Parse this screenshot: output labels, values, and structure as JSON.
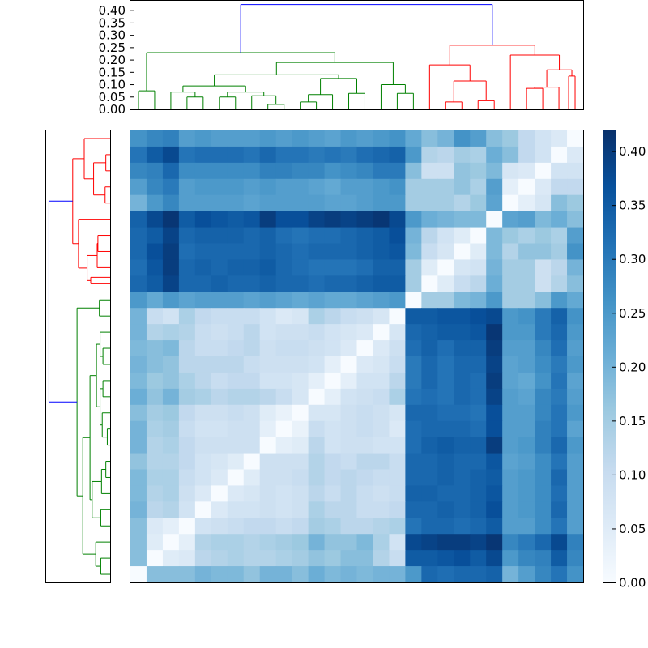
{
  "chart_data": {
    "type": "heatmap",
    "title": "",
    "xlabel": "",
    "ylabel": "",
    "n": 28,
    "colormap": "Blues",
    "colors": {
      "low": "#f7fbff",
      "high": "#08306b",
      "cluster_a": "#ff0000",
      "cluster_b": "#008000",
      "link": "#0000ff"
    },
    "colorbar": {
      "min": 0.0,
      "max": 0.42,
      "ticks": [
        0.0,
        0.05,
        0.1,
        0.15,
        0.2,
        0.25,
        0.3,
        0.35,
        0.4
      ]
    },
    "top_dendrogram": {
      "ylim": [
        0,
        0.44
      ],
      "ticks": [
        0.0,
        0.05,
        0.1,
        0.15,
        0.2,
        0.25,
        0.3,
        0.35,
        0.4
      ],
      "tick_labels": [
        "0.00",
        "0.05",
        "0.10",
        "0.15",
        "0.20",
        "0.25",
        "0.30",
        "0.35",
        "0.40"
      ]
    },
    "clusters": {
      "red_size": 10,
      "green_size": 18,
      "root_height": 0.425,
      "red_root": 0.26,
      "green_root": 0.23
    },
    "matrix": [
      [
        0.26,
        0.28,
        0.29,
        0.24,
        0.25,
        0.24,
        0.24,
        0.24,
        0.25,
        0.24,
        0.25,
        0.24,
        0.23,
        0.25,
        0.24,
        0.25,
        0.26,
        0.22,
        0.18,
        0.2,
        0.26,
        0.24,
        0.18,
        0.16,
        0.11,
        0.08,
        0.06,
        0.0
      ],
      [
        0.31,
        0.35,
        0.38,
        0.31,
        0.32,
        0.32,
        0.32,
        0.31,
        0.33,
        0.31,
        0.31,
        0.3,
        0.31,
        0.3,
        0.32,
        0.33,
        0.34,
        0.25,
        0.13,
        0.12,
        0.15,
        0.14,
        0.21,
        0.18,
        0.11,
        0.08,
        0.0,
        0.06
      ],
      [
        0.28,
        0.29,
        0.33,
        0.27,
        0.27,
        0.27,
        0.27,
        0.27,
        0.29,
        0.29,
        0.28,
        0.28,
        0.26,
        0.27,
        0.28,
        0.3,
        0.3,
        0.18,
        0.09,
        0.09,
        0.17,
        0.16,
        0.19,
        0.07,
        0.06,
        0.0,
        0.08,
        0.08
      ],
      [
        0.24,
        0.28,
        0.3,
        0.24,
        0.25,
        0.25,
        0.25,
        0.24,
        0.25,
        0.24,
        0.24,
        0.23,
        0.22,
        0.24,
        0.24,
        0.25,
        0.26,
        0.15,
        0.15,
        0.15,
        0.17,
        0.14,
        0.24,
        0.04,
        0.0,
        0.06,
        0.11,
        0.11
      ],
      [
        0.2,
        0.25,
        0.28,
        0.24,
        0.24,
        0.24,
        0.24,
        0.23,
        0.24,
        0.24,
        0.24,
        0.24,
        0.23,
        0.23,
        0.24,
        0.25,
        0.25,
        0.15,
        0.15,
        0.15,
        0.13,
        0.16,
        0.23,
        0.0,
        0.04,
        0.07,
        0.18,
        0.16
      ],
      [
        0.34,
        0.38,
        0.41,
        0.35,
        0.37,
        0.36,
        0.35,
        0.36,
        0.4,
        0.37,
        0.37,
        0.39,
        0.4,
        0.39,
        0.4,
        0.41,
        0.38,
        0.25,
        0.21,
        0.2,
        0.19,
        0.19,
        0.0,
        0.23,
        0.24,
        0.19,
        0.21,
        0.18
      ],
      [
        0.33,
        0.35,
        0.39,
        0.33,
        0.34,
        0.34,
        0.34,
        0.33,
        0.34,
        0.32,
        0.31,
        0.32,
        0.32,
        0.33,
        0.34,
        0.35,
        0.37,
        0.2,
        0.12,
        0.08,
        0.05,
        0.0,
        0.19,
        0.16,
        0.14,
        0.16,
        0.14,
        0.24
      ],
      [
        0.33,
        0.37,
        0.4,
        0.32,
        0.33,
        0.33,
        0.33,
        0.33,
        0.34,
        0.33,
        0.32,
        0.33,
        0.33,
        0.33,
        0.34,
        0.35,
        0.36,
        0.19,
        0.1,
        0.07,
        0.0,
        0.05,
        0.19,
        0.13,
        0.17,
        0.17,
        0.15,
        0.26
      ],
      [
        0.32,
        0.36,
        0.4,
        0.33,
        0.34,
        0.33,
        0.34,
        0.34,
        0.35,
        0.33,
        0.32,
        0.31,
        0.31,
        0.31,
        0.32,
        0.34,
        0.34,
        0.15,
        0.05,
        0.0,
        0.07,
        0.08,
        0.2,
        0.15,
        0.15,
        0.09,
        0.12,
        0.2
      ],
      [
        0.33,
        0.35,
        0.39,
        0.33,
        0.33,
        0.34,
        0.33,
        0.33,
        0.34,
        0.33,
        0.33,
        0.32,
        0.33,
        0.33,
        0.34,
        0.35,
        0.35,
        0.15,
        0.0,
        0.05,
        0.1,
        0.12,
        0.21,
        0.15,
        0.15,
        0.09,
        0.13,
        0.18
      ],
      [
        0.25,
        0.22,
        0.25,
        0.23,
        0.24,
        0.24,
        0.24,
        0.23,
        0.24,
        0.23,
        0.22,
        0.23,
        0.22,
        0.22,
        0.23,
        0.24,
        0.25,
        0.0,
        0.15,
        0.15,
        0.19,
        0.2,
        0.25,
        0.15,
        0.15,
        0.18,
        0.25,
        0.22
      ],
      [
        0.2,
        0.1,
        0.08,
        0.14,
        0.11,
        0.1,
        0.1,
        0.1,
        0.08,
        0.06,
        0.07,
        0.14,
        0.12,
        0.1,
        0.09,
        0.07,
        0.0,
        0.35,
        0.35,
        0.36,
        0.36,
        0.37,
        0.38,
        0.25,
        0.26,
        0.3,
        0.34,
        0.26
      ],
      [
        0.2,
        0.13,
        0.14,
        0.13,
        0.1,
        0.09,
        0.1,
        0.12,
        0.08,
        0.09,
        0.09,
        0.1,
        0.08,
        0.07,
        0.06,
        0.0,
        0.07,
        0.33,
        0.34,
        0.35,
        0.35,
        0.36,
        0.41,
        0.25,
        0.25,
        0.3,
        0.33,
        0.25
      ],
      [
        0.19,
        0.18,
        0.19,
        0.12,
        0.1,
        0.1,
        0.11,
        0.12,
        0.09,
        0.1,
        0.1,
        0.09,
        0.08,
        0.06,
        0.0,
        0.06,
        0.09,
        0.32,
        0.34,
        0.32,
        0.34,
        0.34,
        0.4,
        0.24,
        0.24,
        0.28,
        0.32,
        0.24
      ],
      [
        0.2,
        0.18,
        0.17,
        0.12,
        0.12,
        0.12,
        0.12,
        0.1,
        0.09,
        0.09,
        0.09,
        0.08,
        0.04,
        0.0,
        0.06,
        0.07,
        0.1,
        0.3,
        0.33,
        0.31,
        0.33,
        0.33,
        0.39,
        0.23,
        0.24,
        0.27,
        0.3,
        0.25
      ],
      [
        0.19,
        0.16,
        0.17,
        0.14,
        0.12,
        0.1,
        0.11,
        0.11,
        0.08,
        0.08,
        0.07,
        0.04,
        0.0,
        0.04,
        0.08,
        0.08,
        0.12,
        0.3,
        0.33,
        0.31,
        0.33,
        0.32,
        0.4,
        0.23,
        0.22,
        0.26,
        0.31,
        0.23
      ],
      [
        0.21,
        0.17,
        0.2,
        0.15,
        0.14,
        0.12,
        0.13,
        0.13,
        0.12,
        0.1,
        0.07,
        0.0,
        0.04,
        0.08,
        0.09,
        0.1,
        0.14,
        0.31,
        0.32,
        0.31,
        0.33,
        0.32,
        0.39,
        0.24,
        0.23,
        0.28,
        0.3,
        0.24
      ],
      [
        0.18,
        0.15,
        0.16,
        0.11,
        0.09,
        0.09,
        0.1,
        0.09,
        0.05,
        0.03,
        0.0,
        0.07,
        0.07,
        0.09,
        0.1,
        0.09,
        0.07,
        0.33,
        0.33,
        0.32,
        0.32,
        0.31,
        0.37,
        0.24,
        0.24,
        0.28,
        0.31,
        0.25
      ],
      [
        0.2,
        0.14,
        0.15,
        0.1,
        0.08,
        0.08,
        0.09,
        0.09,
        0.04,
        0.0,
        0.03,
        0.1,
        0.08,
        0.09,
        0.1,
        0.09,
        0.06,
        0.32,
        0.33,
        0.33,
        0.33,
        0.32,
        0.37,
        0.24,
        0.24,
        0.29,
        0.31,
        0.23
      ],
      [
        0.2,
        0.13,
        0.14,
        0.11,
        0.09,
        0.09,
        0.09,
        0.09,
        0.0,
        0.04,
        0.05,
        0.12,
        0.08,
        0.09,
        0.09,
        0.08,
        0.08,
        0.32,
        0.34,
        0.35,
        0.34,
        0.34,
        0.4,
        0.24,
        0.25,
        0.29,
        0.33,
        0.25
      ],
      [
        0.17,
        0.13,
        0.13,
        0.11,
        0.08,
        0.07,
        0.05,
        0.0,
        0.09,
        0.09,
        0.09,
        0.13,
        0.11,
        0.1,
        0.12,
        0.12,
        0.1,
        0.33,
        0.33,
        0.34,
        0.33,
        0.33,
        0.36,
        0.23,
        0.24,
        0.27,
        0.31,
        0.24
      ],
      [
        0.19,
        0.14,
        0.14,
        0.1,
        0.08,
        0.06,
        0.0,
        0.05,
        0.09,
        0.09,
        0.1,
        0.13,
        0.11,
        0.12,
        0.11,
        0.1,
        0.1,
        0.33,
        0.33,
        0.34,
        0.33,
        0.34,
        0.35,
        0.24,
        0.25,
        0.27,
        0.33,
        0.24
      ],
      [
        0.19,
        0.13,
        0.14,
        0.09,
        0.06,
        0.0,
        0.06,
        0.07,
        0.09,
        0.08,
        0.09,
        0.12,
        0.1,
        0.12,
        0.1,
        0.09,
        0.1,
        0.34,
        0.34,
        0.33,
        0.33,
        0.34,
        0.36,
        0.24,
        0.25,
        0.27,
        0.32,
        0.24
      ],
      [
        0.2,
        0.12,
        0.13,
        0.08,
        0.0,
        0.06,
        0.08,
        0.08,
        0.09,
        0.08,
        0.09,
        0.14,
        0.12,
        0.12,
        0.1,
        0.1,
        0.11,
        0.33,
        0.33,
        0.34,
        0.33,
        0.34,
        0.37,
        0.24,
        0.25,
        0.27,
        0.33,
        0.24
      ],
      [
        0.18,
        0.06,
        0.04,
        0.0,
        0.08,
        0.09,
        0.1,
        0.11,
        0.11,
        0.1,
        0.11,
        0.15,
        0.14,
        0.12,
        0.12,
        0.13,
        0.14,
        0.31,
        0.33,
        0.33,
        0.32,
        0.33,
        0.35,
        0.24,
        0.24,
        0.27,
        0.31,
        0.24
      ],
      [
        0.18,
        0.05,
        0.0,
        0.04,
        0.13,
        0.14,
        0.14,
        0.13,
        0.14,
        0.15,
        0.16,
        0.2,
        0.17,
        0.17,
        0.19,
        0.14,
        0.08,
        0.38,
        0.39,
        0.4,
        0.4,
        0.39,
        0.41,
        0.28,
        0.3,
        0.33,
        0.38,
        0.29
      ],
      [
        0.18,
        0.0,
        0.05,
        0.06,
        0.12,
        0.13,
        0.14,
        0.13,
        0.13,
        0.14,
        0.15,
        0.17,
        0.16,
        0.18,
        0.18,
        0.13,
        0.1,
        0.35,
        0.35,
        0.36,
        0.37,
        0.35,
        0.38,
        0.25,
        0.28,
        0.29,
        0.35,
        0.28
      ],
      [
        0.0,
        0.18,
        0.18,
        0.18,
        0.2,
        0.19,
        0.19,
        0.17,
        0.2,
        0.2,
        0.18,
        0.21,
        0.19,
        0.2,
        0.19,
        0.2,
        0.2,
        0.25,
        0.33,
        0.32,
        0.33,
        0.33,
        0.34,
        0.2,
        0.24,
        0.28,
        0.31,
        0.26
      ]
    ]
  }
}
